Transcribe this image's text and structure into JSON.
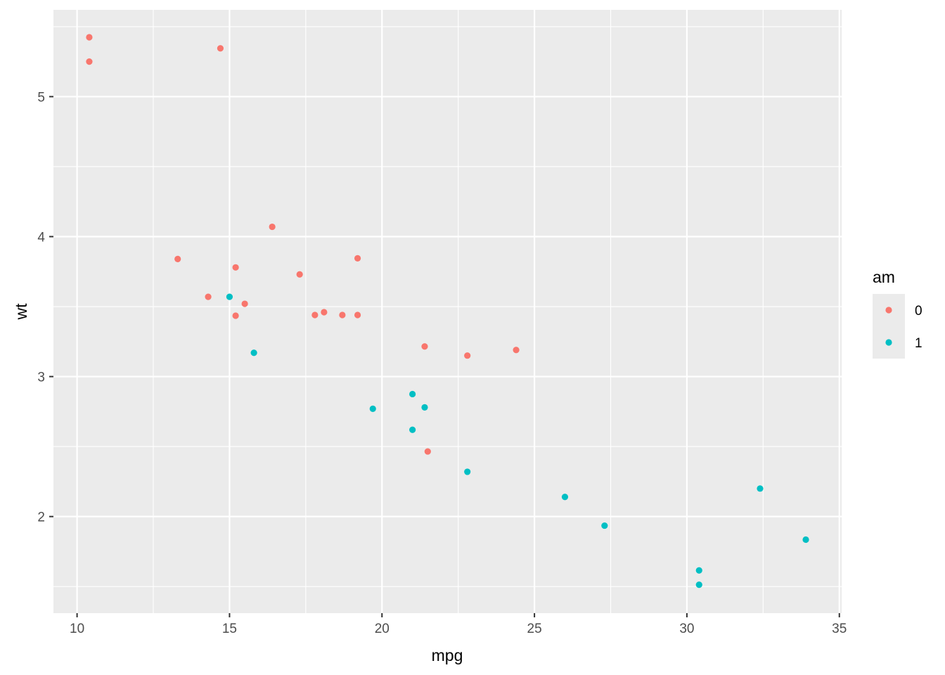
{
  "chart_data": {
    "type": "scatter",
    "xlabel": "mpg",
    "ylabel": "wt",
    "xlim": [
      9.225,
      35.075
    ],
    "ylim": [
      1.31,
      5.62
    ],
    "x_ticks": [
      10,
      15,
      20,
      25,
      30,
      35
    ],
    "x_tick_labels": [
      "10",
      "15",
      "20",
      "25",
      "30",
      "35"
    ],
    "y_ticks": [
      2,
      3,
      4,
      5
    ],
    "y_tick_labels": [
      "2",
      "3",
      "4",
      "5"
    ],
    "x_minor": [
      12.5,
      17.5,
      22.5,
      27.5,
      32.5
    ],
    "y_minor": [
      1.5,
      2.5,
      3.5,
      4.5,
      5.5
    ],
    "grid": true,
    "legend": {
      "title": "am",
      "position": "right",
      "entries": [
        {
          "label": "0",
          "color": "#F8766D"
        },
        {
          "label": "1",
          "color": "#00BFC4"
        }
      ]
    },
    "series": [
      {
        "name": "0",
        "color": "#F8766D",
        "points": [
          [
            21.4,
            3.215
          ],
          [
            18.7,
            3.44
          ],
          [
            18.1,
            3.46
          ],
          [
            14.3,
            3.57
          ],
          [
            24.4,
            3.19
          ],
          [
            22.8,
            3.15
          ],
          [
            19.2,
            3.44
          ],
          [
            17.8,
            3.44
          ],
          [
            16.4,
            4.07
          ],
          [
            17.3,
            3.73
          ],
          [
            15.2,
            3.78
          ],
          [
            10.4,
            5.25
          ],
          [
            10.4,
            5.424
          ],
          [
            14.7,
            5.345
          ],
          [
            21.5,
            2.465
          ],
          [
            15.5,
            3.52
          ],
          [
            15.2,
            3.435
          ],
          [
            13.3,
            3.84
          ],
          [
            19.2,
            3.845
          ]
        ]
      },
      {
        "name": "1",
        "color": "#00BFC4",
        "points": [
          [
            21.0,
            2.62
          ],
          [
            21.0,
            2.875
          ],
          [
            22.8,
            2.32
          ],
          [
            32.4,
            2.2
          ],
          [
            30.4,
            1.615
          ],
          [
            33.9,
            1.835
          ],
          [
            27.3,
            1.935
          ],
          [
            26.0,
            2.14
          ],
          [
            30.4,
            1.513
          ],
          [
            15.8,
            3.17
          ],
          [
            19.7,
            2.77
          ],
          [
            15.0,
            3.57
          ],
          [
            21.4,
            2.78
          ]
        ]
      }
    ]
  }
}
